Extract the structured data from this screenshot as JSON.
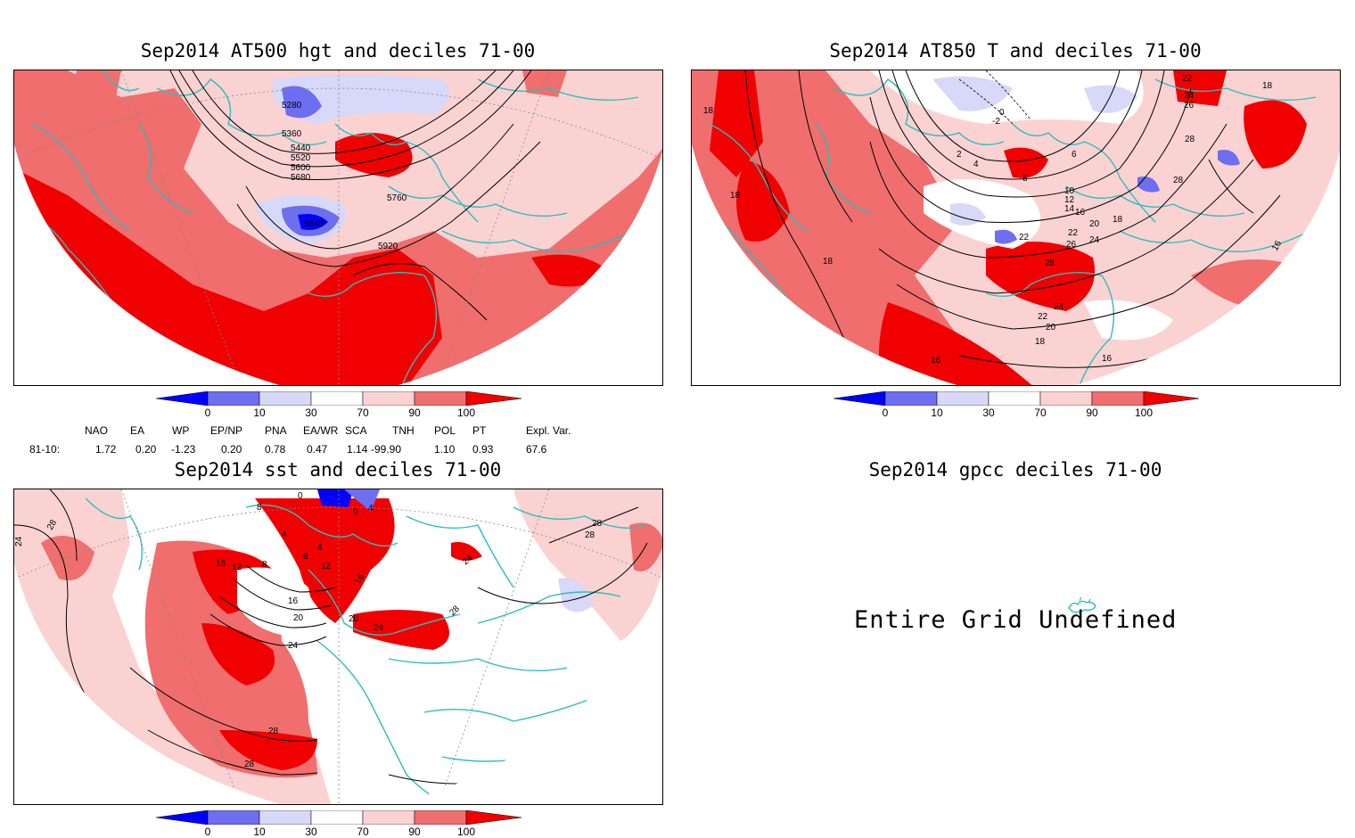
{
  "panels": {
    "hgt": {
      "title": "Sep2014 AT500 hgt and deciles 71-00",
      "contour_labels": [
        "5280",
        "5360",
        "5440",
        "5520",
        "5600",
        "5680",
        "5760",
        "5840",
        "5920"
      ]
    },
    "t850": {
      "title": "Sep2014 AT850 T and deciles 71-00",
      "contour_labels": [
        "18",
        "18",
        "18",
        "18",
        "16",
        "16",
        "16",
        "-2",
        "0",
        "2",
        "4",
        "6",
        "8",
        "10",
        "12",
        "14",
        "16",
        "18",
        "20",
        "22",
        "24",
        "26",
        "28",
        "22",
        "24",
        "26",
        "28",
        "28",
        "22",
        "24",
        "20",
        "18",
        "22"
      ]
    },
    "sst": {
      "title": "Sep2014 sst and deciles 71-00",
      "contour_labels": [
        "28",
        "24",
        "28",
        "28",
        "28",
        "28",
        "24",
        "20",
        "16",
        "16",
        "12",
        "8",
        "8",
        "4",
        "4",
        "8",
        "12",
        "16",
        "20",
        "24",
        "28",
        "24",
        "0",
        "4",
        "0"
      ]
    },
    "gpcc": {
      "title": "Sep2014 gpcc deciles 71-00",
      "message": "Entire Grid Undefined"
    }
  },
  "colorbar": {
    "labels": [
      "0",
      "10",
      "30",
      "70",
      "90",
      "100"
    ],
    "colors": {
      "below_0": "#0000ff",
      "0_10": "#6e6ef0",
      "10_30": "#d8d8f8",
      "30_70": "#ffffff",
      "70_90": "#fbd2d2",
      "90_100": "#f06e6e",
      "above_100": "#f00000"
    }
  },
  "teleconnections": {
    "headers": [
      "NAO",
      "EA",
      "WP",
      "EP/NP",
      "PNA",
      "EA/WR",
      "SCA",
      "TNH",
      "POL",
      "PT",
      "Expl. Var."
    ],
    "row_label": "81-10:",
    "values": [
      "1.72",
      "0.20",
      "-1.23",
      "0.20",
      "0.78",
      "0.47",
      "1.14",
      "-99.90",
      "1.10",
      "0.93",
      "67.6"
    ]
  },
  "style": {
    "coast_color": "#2ebdbd",
    "contour_color": "#000000"
  }
}
